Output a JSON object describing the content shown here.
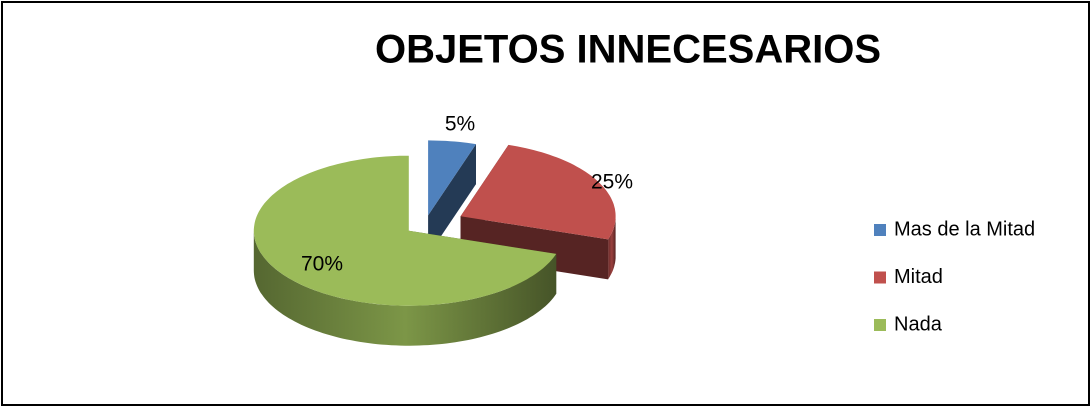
{
  "chart_data": {
    "type": "pie3d",
    "title": "OBJETOS INNECESARIOS",
    "categories": [
      "Mas de la Mitad",
      "Mitad",
      "Nada"
    ],
    "values": [
      5,
      25,
      70
    ],
    "value_labels": [
      "5%",
      "25%",
      "70%"
    ],
    "colors": [
      "#4f81bd",
      "#c0504d",
      "#9bbb59"
    ]
  }
}
